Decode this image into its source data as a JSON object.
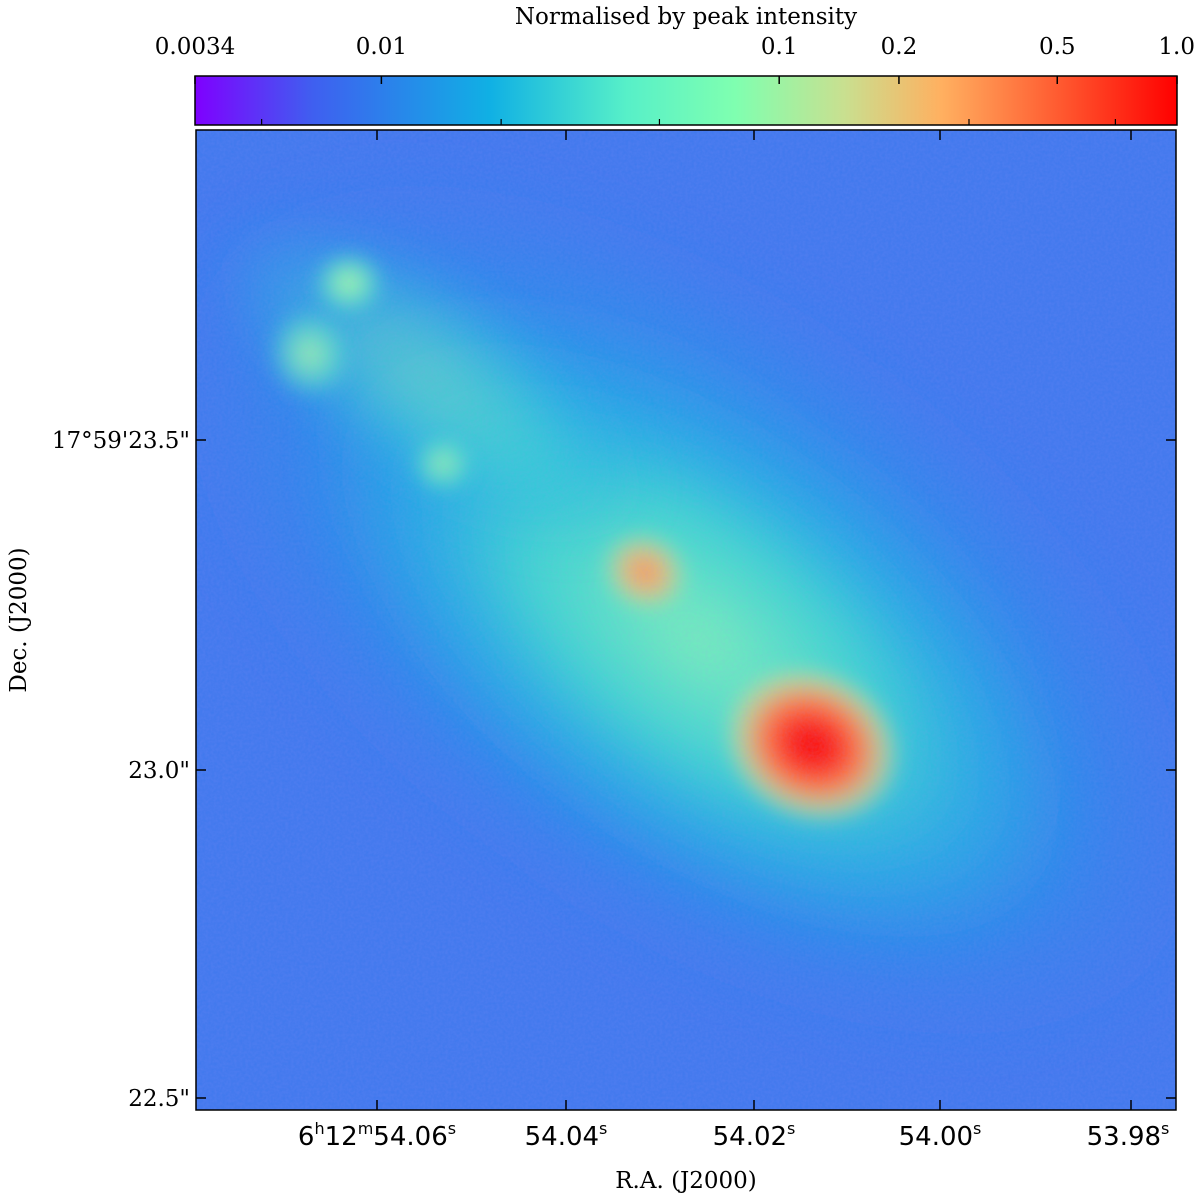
{
  "colorbar": {
    "label": "Normalised by peak intensity",
    "scale": "log",
    "range": [
      0.0034,
      1.0
    ],
    "stops": [
      "#7f00ff",
      "#3f5ff0",
      "#10b0e4",
      "#57f0c8",
      "#7fffb0",
      "#c8e090",
      "#ffb060",
      "#ff5a30",
      "#ff0000"
    ],
    "ticks": [
      {
        "value": 0.0034,
        "label": "0.0034"
      },
      {
        "value": 0.01,
        "label": "0.01"
      },
      {
        "value": 0.1,
        "label": "0.1"
      },
      {
        "value": 0.2,
        "label": "0.2"
      },
      {
        "value": 0.5,
        "label": "0.5"
      },
      {
        "value": 1.0,
        "label": "1.0"
      }
    ]
  },
  "axes": {
    "xlabel": "R.A. (J2000)",
    "ylabel": "Dec. (J2000)",
    "x_ticks": [
      {
        "main": "6",
        "sup1": "h",
        "mid": "12",
        "sup2": "m",
        "tail": "54.06",
        "sup3": "s"
      },
      {
        "main": "",
        "sup1": "",
        "mid": "",
        "sup2": "",
        "tail": "54.04",
        "sup3": "s"
      },
      {
        "main": "",
        "sup1": "",
        "mid": "",
        "sup2": "",
        "tail": "54.02",
        "sup3": "s"
      },
      {
        "main": "",
        "sup1": "",
        "mid": "",
        "sup2": "",
        "tail": "54.00",
        "sup3": "s"
      },
      {
        "main": "",
        "sup1": "",
        "mid": "",
        "sup2": "",
        "tail": "53.98",
        "sup3": "s"
      }
    ],
    "y_ticks": [
      "17°59'23.5\"",
      "23.0\"",
      "22.5\""
    ]
  },
  "image": {
    "background": "#3d78ee",
    "sources": [
      {
        "name": "main-core",
        "color": "#ff1010"
      },
      {
        "name": "secondary-knot",
        "color": "#ff9a55"
      },
      {
        "name": "knot-a",
        "color": "#9dfcb0"
      },
      {
        "name": "knot-b",
        "color": "#8ff5b8"
      },
      {
        "name": "knot-c",
        "color": "#a6f7a0"
      }
    ]
  }
}
